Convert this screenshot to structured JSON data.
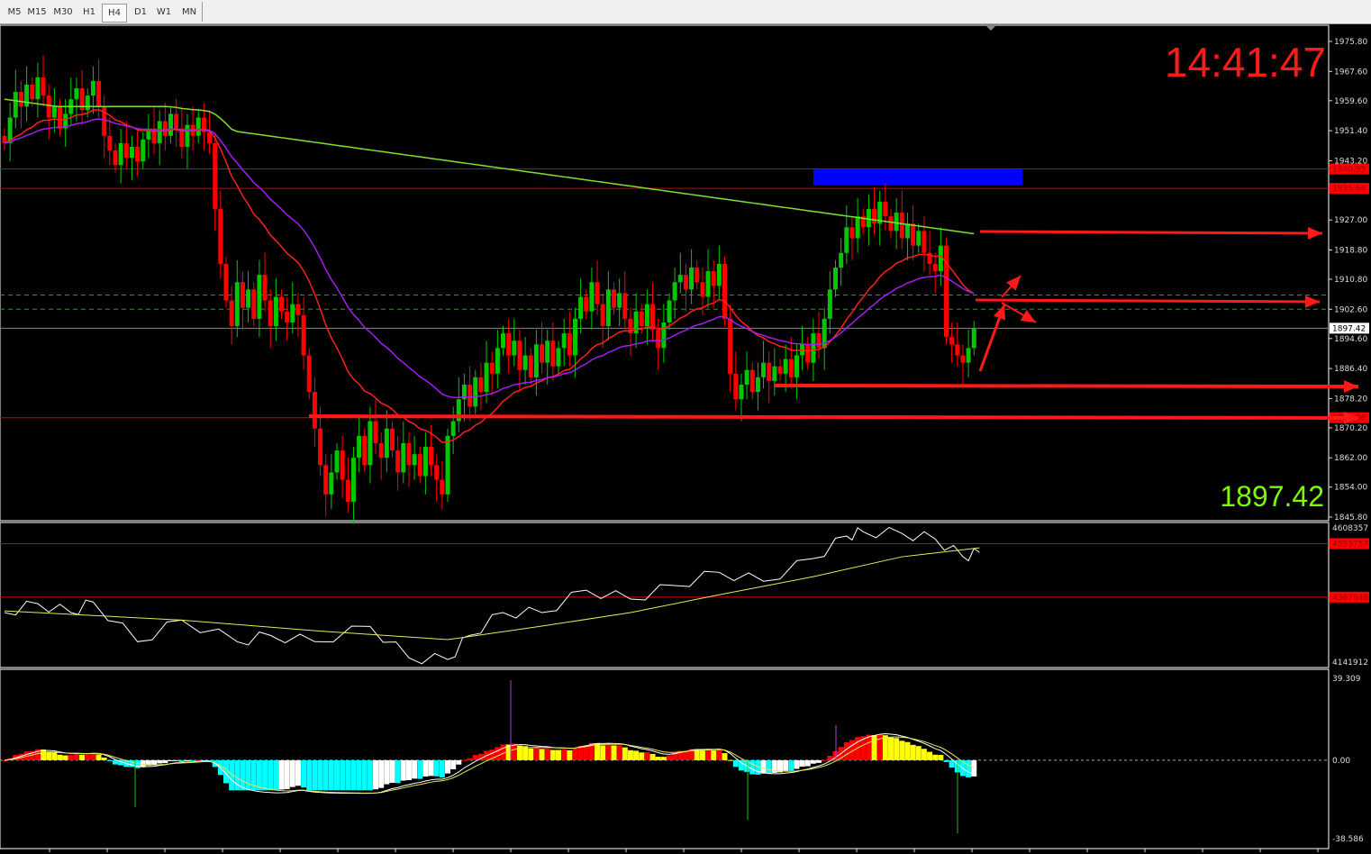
{
  "toolbar": {
    "timeframes": [
      "M5",
      "M15",
      "M30",
      "H1",
      "H4",
      "D1",
      "W1",
      "MN"
    ],
    "active": "H4"
  },
  "clock": "14:41:47",
  "current_price": "1897.42",
  "chart_data": [
    {
      "type": "candlestick",
      "ylim": [
        1845.8,
        1975.8
      ],
      "y_ticks": [
        "1975.80",
        "1967.60",
        "1959.60",
        "1951.40",
        "1943.20",
        "1927.00",
        "1918.80",
        "1910.80",
        "1902.60",
        "1894.60",
        "1886.40",
        "1878.20",
        "1870.20",
        "1862.00",
        "1854.00",
        "1845.80"
      ],
      "price_labels": {
        "line1": "1940.95",
        "line2": "1935.64",
        "support": "1872.96",
        "bid": "1897.42"
      },
      "closes": [
        1948,
        1955,
        1962,
        1958,
        1964,
        1960,
        1966,
        1961,
        1955,
        1958,
        1952,
        1956,
        1960,
        1963,
        1957,
        1961,
        1965,
        1958,
        1950,
        1946,
        1942,
        1948,
        1944,
        1947,
        1943,
        1949,
        1952,
        1948,
        1954,
        1950,
        1956,
        1952,
        1947,
        1953,
        1950,
        1955,
        1951,
        1948,
        1930,
        1915,
        1905,
        1898,
        1910,
        1903,
        1908,
        1900,
        1912,
        1905,
        1898,
        1906,
        1902,
        1899,
        1904,
        1901,
        1890,
        1880,
        1870,
        1860,
        1852,
        1858,
        1864,
        1856,
        1850,
        1862,
        1868,
        1860,
        1872,
        1866,
        1862,
        1870,
        1864,
        1858,
        1866,
        1860,
        1863,
        1857,
        1865,
        1860,
        1856,
        1852,
        1868,
        1872,
        1878,
        1882,
        1876,
        1884,
        1880,
        1888,
        1885,
        1892,
        1896,
        1890,
        1894,
        1886,
        1890,
        1884,
        1893,
        1888,
        1894,
        1887,
        1892,
        1896,
        1890,
        1900,
        1906,
        1902,
        1910,
        1904,
        1898,
        1908,
        1903,
        1907,
        1900,
        1896,
        1902,
        1898,
        1904,
        1897,
        1892,
        1899,
        1905,
        1910,
        1912,
        1908,
        1914,
        1910,
        1906,
        1913,
        1909,
        1915,
        1900,
        1885,
        1878,
        1882,
        1886,
        1880,
        1884,
        1888,
        1883,
        1887,
        1885,
        1889,
        1884,
        1890,
        1893,
        1888,
        1896,
        1892,
        1900,
        1908,
        1914,
        1918,
        1925,
        1922,
        1928,
        1925,
        1930,
        1926,
        1932,
        1928,
        1924,
        1929,
        1922,
        1926,
        1920,
        1924,
        1918,
        1915,
        1913,
        1920,
        1895,
        1893,
        1890,
        1888,
        1892,
        1897.42
      ],
      "horizontal_lines": [
        1940.95,
        1935.64,
        1897.42,
        1872.96
      ],
      "dashed_lines": [
        1906.5,
        1902.6
      ],
      "zone": {
        "from": 1936.5,
        "to": 1940.8,
        "color": "#0000ff"
      },
      "colors": {
        "bull": "#00c800",
        "bear": "#ff0000",
        "ma_fast": "#ff2020",
        "ma_mid": "#a020f0",
        "ma_slow": "#7fe030"
      }
    },
    {
      "type": "line",
      "ylim": [
        4141912,
        4608357
      ],
      "y_ticks": [
        "4608357",
        "4141912"
      ],
      "price_labels": [
        "4553757",
        "4367848"
      ],
      "series": [
        {
          "color": "#ffffff",
          "points": [
            [
              0,
              4314000
            ],
            [
              6,
              4345000
            ],
            [
              12,
              4314000
            ],
            [
              16,
              4351000
            ],
            [
              24,
              4213000
            ],
            [
              32,
              4288000
            ],
            [
              42,
              4213000
            ],
            [
              48,
              4235000
            ],
            [
              56,
              4213000
            ],
            [
              66,
              4266000
            ],
            [
              73,
              4157000
            ],
            [
              80,
              4151000
            ],
            [
              84,
              4235000
            ],
            [
              90,
              4314000
            ],
            [
              97,
              4314000
            ],
            [
              105,
              4392000
            ],
            [
              113,
              4361000
            ],
            [
              121,
              4408000
            ],
            [
              129,
              4454000
            ],
            [
              137,
              4423000
            ],
            [
              146,
              4502000
            ],
            [
              152,
              4580000
            ],
            [
              155,
              4595000
            ],
            [
              162,
              4589000
            ],
            [
              168,
              4570000
            ],
            [
              173,
              4508000
            ],
            [
              176,
              4523000
            ]
          ]
        },
        {
          "color": "#e8e85a",
          "points": [
            [
              0,
              4320000
            ],
            [
              32,
              4288000
            ],
            [
              56,
              4251000
            ],
            [
              80,
              4220000
            ],
            [
              97,
              4267000
            ],
            [
              113,
              4314000
            ],
            [
              129,
              4376000
            ],
            [
              146,
              4439000
            ],
            [
              162,
              4508000
            ],
            [
              176,
              4539000
            ]
          ]
        }
      ]
    },
    {
      "type": "histogram",
      "ylim": [
        -38.586,
        39.309
      ],
      "y_ticks": [
        "39.309",
        "0.00",
        "-38.586"
      ],
      "colors": {
        "pos_up": "#ff0000",
        "pos_down": "#ffff00",
        "neg_down": "#00ffff",
        "neg_up": "#ffffff"
      }
    }
  ]
}
